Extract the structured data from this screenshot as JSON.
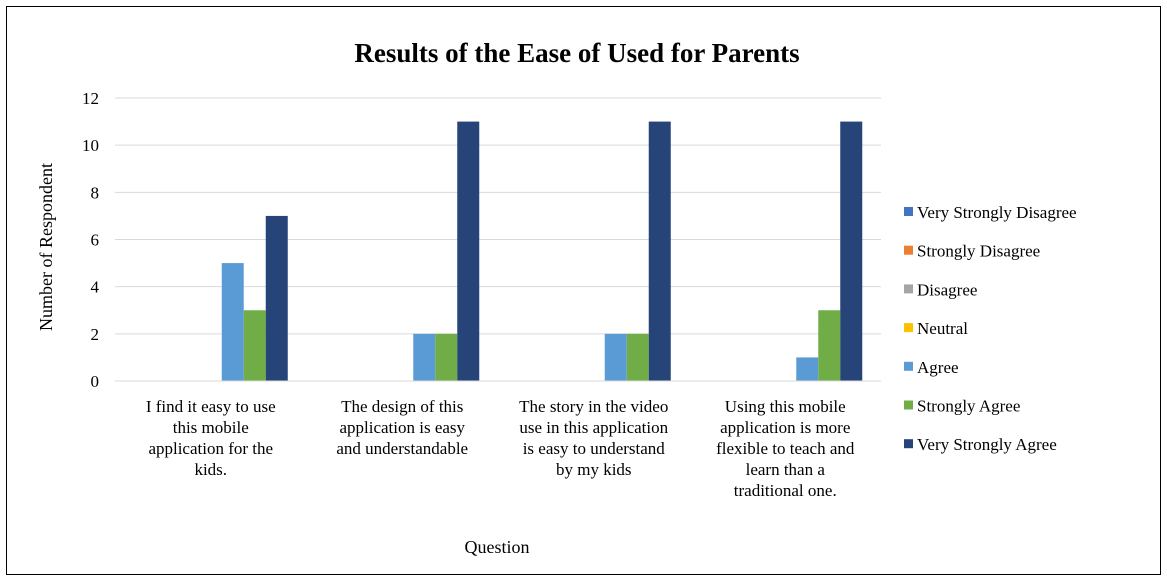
{
  "chart_data": {
    "type": "bar",
    "title": "Results of the Ease of Used for Parents",
    "xlabel": "Question",
    "ylabel": "Number of Respondent",
    "ylim": [
      0,
      12
    ],
    "yticks": [
      0,
      2,
      4,
      6,
      8,
      10,
      12
    ],
    "grid": true,
    "legend_position": "right",
    "categories": [
      [
        "I find it easy to use",
        "this mobile",
        "application for the",
        "kids."
      ],
      [
        "The design of this",
        "application is easy",
        "and understandable"
      ],
      [
        "The story in the video",
        "use in this application",
        "is easy to understand",
        "by my kids"
      ],
      [
        "Using this mobile",
        "application is more",
        "flexible to teach and",
        "learn than a",
        "traditional one."
      ]
    ],
    "series": [
      {
        "name": "Very Strongly Disagree",
        "color": "#4472C4",
        "values": [
          0,
          0,
          0,
          0
        ]
      },
      {
        "name": "Strongly Disagree",
        "color": "#ED7D31",
        "values": [
          0,
          0,
          0,
          0
        ]
      },
      {
        "name": "Disagree",
        "color": "#A5A5A5",
        "values": [
          0,
          0,
          0,
          0
        ]
      },
      {
        "name": "Neutral",
        "color": "#FFC000",
        "values": [
          0,
          0,
          0,
          0
        ]
      },
      {
        "name": "Agree",
        "color": "#5B9BD5",
        "values": [
          5,
          2,
          2,
          1
        ]
      },
      {
        "name": "Strongly Agree",
        "color": "#70AD47",
        "values": [
          3,
          2,
          2,
          3
        ]
      },
      {
        "name": "Very Strongly Agree",
        "color": "#264478",
        "values": [
          7,
          11,
          11,
          11
        ]
      }
    ]
  }
}
